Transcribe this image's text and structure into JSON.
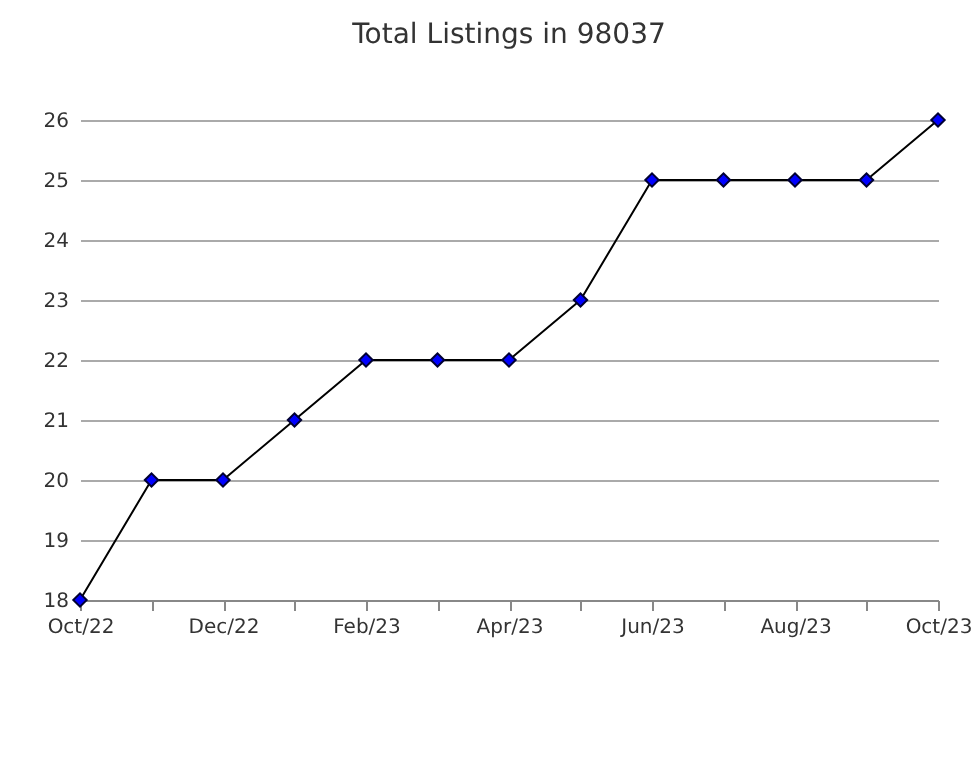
{
  "chart_data": {
    "type": "line",
    "title": "Total Listings in 98037",
    "categories": [
      "Oct/22",
      null,
      "Dec/22",
      null,
      "Feb/23",
      null,
      "Apr/23",
      null,
      "Jun/23",
      null,
      "Aug/23",
      null,
      "Oct/23"
    ],
    "series": [
      {
        "color": "#0000ff",
        "values": [
          18,
          20,
          20,
          21,
          22,
          22,
          22,
          23,
          25,
          25,
          25,
          25,
          26
        ]
      }
    ],
    "ylim": [
      18,
      26
    ],
    "yticks": [
      18,
      19,
      20,
      21,
      22,
      23,
      24,
      25,
      26
    ],
    "grid": "y",
    "marker": "diamond",
    "line_style": "solid"
  }
}
